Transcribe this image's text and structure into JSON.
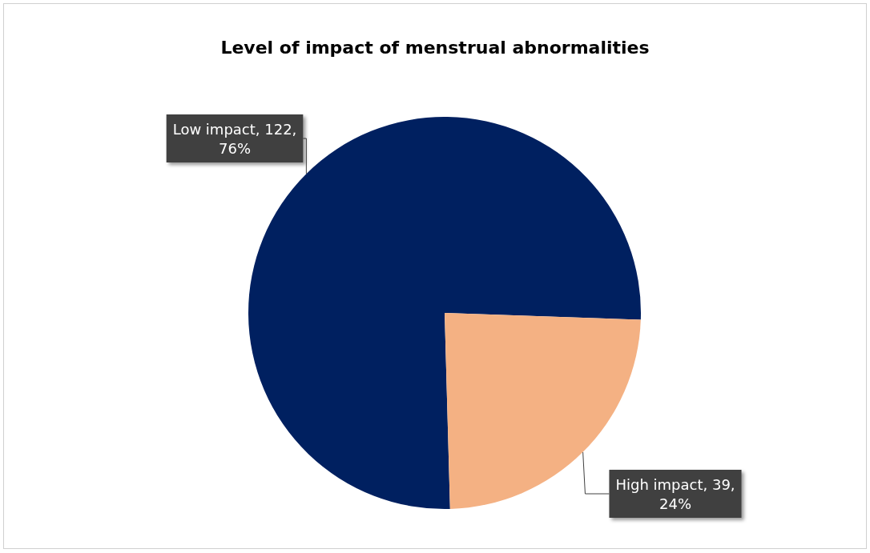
{
  "chart_data": {
    "type": "pie",
    "title": "Level of impact of menstrual abnormalities",
    "categories": [
      "Low impact",
      "High impact"
    ],
    "values": [
      76,
      24
    ],
    "value_labels": [
      "122, 76%",
      "39, 24%"
    ],
    "colors": [
      "#002060",
      "#f4b183"
    ],
    "legend": false
  }
}
